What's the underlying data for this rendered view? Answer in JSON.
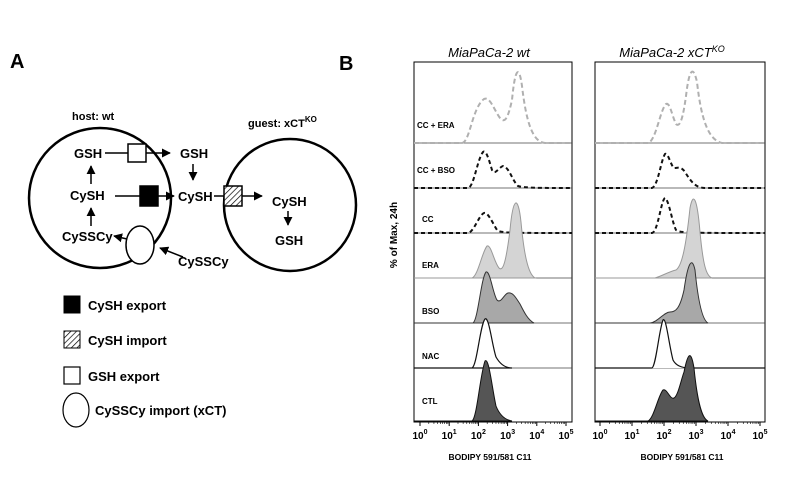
{
  "panel_a": {
    "label": "A",
    "host_label": "host: wt",
    "guest_label_prefix": "guest: xCT",
    "guest_label_sup": "KO",
    "nodes": {
      "host_gsh": "GSH",
      "host_cysh": "CySH",
      "host_cyssc": "CySSCy",
      "ext_gsh": "GSH",
      "ext_cysh": "CySH",
      "ext_cyssc": "CySSCy",
      "guest_cysh": "CySH",
      "guest_gsh": "GSH"
    },
    "legend": [
      {
        "symbol": "black-square",
        "label": "CySH export"
      },
      {
        "symbol": "hatched-square",
        "label": "CySH import"
      },
      {
        "symbol": "white-square",
        "label": "GSH export"
      },
      {
        "symbol": "ellipse",
        "label": "CySSCy import (xCT)"
      }
    ]
  },
  "panel_b": {
    "label": "B",
    "ylabel": "% of Max, 24h",
    "row_labels": [
      "CC + ERA",
      "CC + BSO",
      "CC",
      "ERA",
      "BSO",
      "NAC",
      "CTL"
    ],
    "tick_labels": [
      {
        "base": "10",
        "exp": "0"
      },
      {
        "base": "10",
        "exp": "1"
      },
      {
        "base": "10",
        "exp": "2"
      },
      {
        "base": "10",
        "exp": "3"
      },
      {
        "base": "10",
        "exp": "4"
      },
      {
        "base": "10",
        "exp": "5"
      }
    ],
    "panels": [
      {
        "title": "MiaPaCa-2 wt",
        "xlabel": "BODIPY 591/581 C11"
      },
      {
        "title_prefix": "MiaPaCa-2 xCT",
        "title_sup": "KO",
        "xlabel": "BODIPY 591/581 C11"
      }
    ],
    "colors": {
      "light_fill": "#d4d4d4",
      "mid_fill": "#a8a8a8",
      "dark_fill": "#555555",
      "gray_dash": "#b0b0b0",
      "black_dash": "#111111"
    }
  }
}
